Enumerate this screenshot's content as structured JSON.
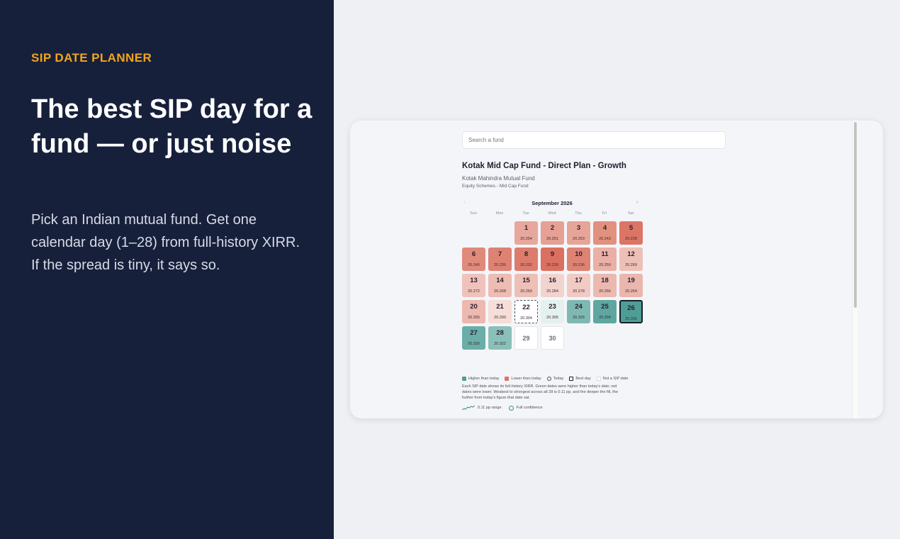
{
  "hero": {
    "eyebrow": "SIP DATE PLANNER",
    "headline": "The best SIP day for a fund — or just noise",
    "subtext": "Pick an Indian mutual fund. Get one calendar day (1–28) from full-history XIRR. If the spread is tiny, it says so."
  },
  "app": {
    "search_placeholder": "Search a fund",
    "fund": {
      "name": "Kotak Mid Cap Fund - Direct Plan - Growth",
      "amc": "Kotak Mahindra Mutual Fund",
      "category": "Equity Schemes - Mid Cap Fund"
    },
    "calendar": {
      "month": "September 2026",
      "prev_icon": "‹",
      "next_icon": "›",
      "weekdays": [
        "Sun",
        "Mon",
        "Tue",
        "Wed",
        "Thu",
        "Fri",
        "Sat"
      ],
      "today_xirr": "20.304",
      "days": [
        {
          "day": "1",
          "xirr": "20.254",
          "color": "#e8a79c"
        },
        {
          "day": "2",
          "xirr": "20.251",
          "color": "#e6a094"
        },
        {
          "day": "3",
          "xirr": "20.253",
          "color": "#e7a599"
        },
        {
          "day": "4",
          "xirr": "20.243",
          "color": "#e3917f"
        },
        {
          "day": "5",
          "xirr": "20.228",
          "color": "#dc7565"
        },
        {
          "day": "6",
          "xirr": "20.240",
          "color": "#e08a7c"
        },
        {
          "day": "7",
          "xirr": "20.236",
          "color": "#de8273"
        },
        {
          "day": "8",
          "xirr": "20.232",
          "color": "#dd7b6c"
        },
        {
          "day": "9",
          "xirr": "20.226",
          "color": "#db7060"
        },
        {
          "day": "10",
          "xirr": "20.236",
          "color": "#de8273"
        },
        {
          "day": "11",
          "xirr": "20.259",
          "color": "#eab0a6"
        },
        {
          "day": "12",
          "xirr": "20.269",
          "color": "#eebfb6"
        },
        {
          "day": "13",
          "xirr": "20.272",
          "color": "#efc3bb"
        },
        {
          "day": "14",
          "xirr": "20.268",
          "color": "#edbcb3"
        },
        {
          "day": "15",
          "xirr": "20.269",
          "color": "#eebfb6"
        },
        {
          "day": "16",
          "xirr": "20.284",
          "color": "#f3d3cd"
        },
        {
          "day": "17",
          "xirr": "20.278",
          "color": "#f1cac3"
        },
        {
          "day": "18",
          "xirr": "20.266",
          "color": "#ecb9b0"
        },
        {
          "day": "19",
          "xirr": "20.264",
          "color": "#ebb6ad"
        },
        {
          "day": "20",
          "xirr": "20.265",
          "color": "#ecb8af"
        },
        {
          "day": "21",
          "xirr": "20.290",
          "color": "#f6ddd8"
        },
        {
          "day": "22",
          "xirr": "20.304",
          "color": "#ffffff",
          "today": true
        },
        {
          "day": "23",
          "xirr": "20.305",
          "color": "#e4f1ef"
        },
        {
          "day": "24",
          "xirr": "20.326",
          "color": "#7db8b2"
        },
        {
          "day": "25",
          "xirr": "20.334",
          "color": "#5ea7a0"
        },
        {
          "day": "26",
          "xirr": "20.336",
          "color": "#4f9e96",
          "best": true
        },
        {
          "day": "27",
          "xirr": "20.330",
          "color": "#6aaea7"
        },
        {
          "day": "28",
          "xirr": "20.322",
          "color": "#8bc0ba"
        },
        {
          "day": "29",
          "xirr": "",
          "color": "#ffffff",
          "not_sip": true
        },
        {
          "day": "30",
          "xirr": "",
          "color": "#ffffff",
          "not_sip": true
        }
      ]
    },
    "legend": {
      "higher": "Higher than today",
      "lower": "Lower than today",
      "today": "Today",
      "best": "Best day",
      "not_sip": "Not a SIP date",
      "higher_color": "#4f9e96",
      "lower_color": "#dc7565"
    },
    "explanation": "Each SIP date shows its full-history XIRR. Green dates were higher than today's date; red dates were lower. Weakest to strongest across all 28 is 0.11 pp, and the deeper the fill, the further from today's figure that date sat.",
    "range_label": "0.11 pp range",
    "confidence_label": "Full confidence"
  }
}
